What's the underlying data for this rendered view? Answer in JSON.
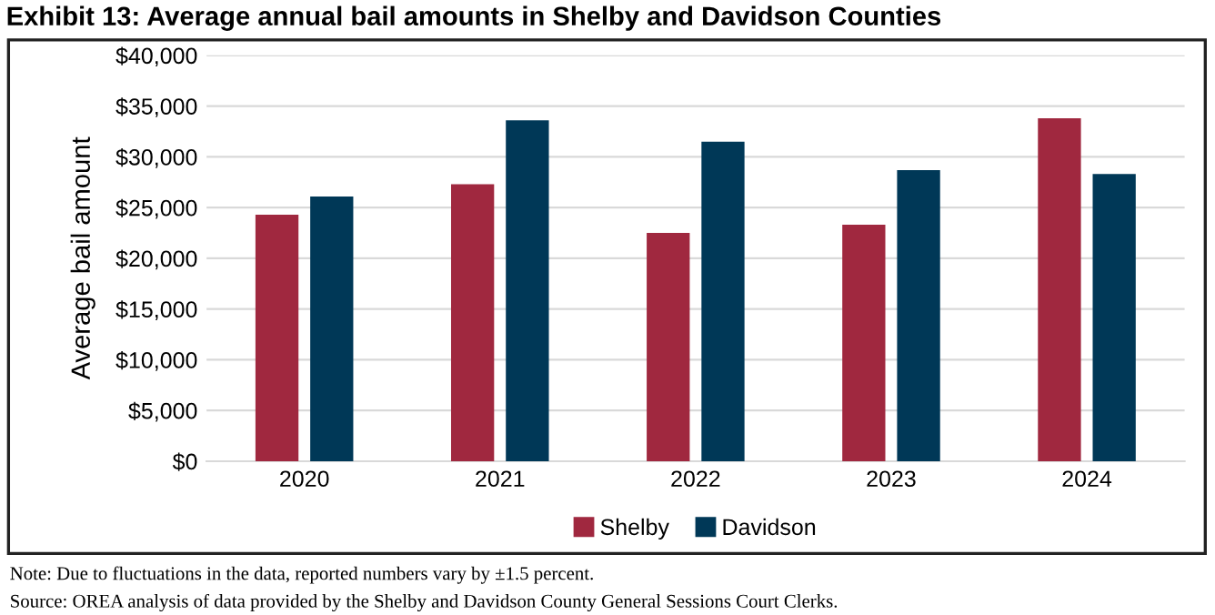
{
  "chart_data": {
    "type": "bar",
    "title": "Exhibit 13: Average annual bail amounts in Shelby and Davidson Counties",
    "ylabel": "Average bail amount",
    "categories": [
      "2020",
      "2021",
      "2022",
      "2023",
      "2024"
    ],
    "series": [
      {
        "name": "Shelby",
        "color": "#a0283f",
        "values": [
          24300,
          27300,
          22500,
          23300,
          33800
        ]
      },
      {
        "name": "Davidson",
        "color": "#003857",
        "values": [
          26100,
          33600,
          31500,
          28700,
          28300
        ]
      }
    ],
    "ylim": [
      0,
      40000
    ],
    "yticks": [
      {
        "value": 0,
        "label": "$0"
      },
      {
        "value": 5000,
        "label": "$5,000"
      },
      {
        "value": 10000,
        "label": "$10,000"
      },
      {
        "value": 15000,
        "label": "$15,000"
      },
      {
        "value": 20000,
        "label": "$20,000"
      },
      {
        "value": 25000,
        "label": "$25,000"
      },
      {
        "value": 30000,
        "label": "$30,000"
      },
      {
        "value": 35000,
        "label": "$35,000"
      },
      {
        "value": 40000,
        "label": "$40,000"
      }
    ],
    "grid": "y",
    "legend": "bottom",
    "annotations": [
      "Note: Due to fluctuations in the data, reported numbers vary by ±1.5 percent.",
      "Source: OREA analysis of data provided by the Shelby and Davidson County General Sessions Court Clerks."
    ]
  }
}
